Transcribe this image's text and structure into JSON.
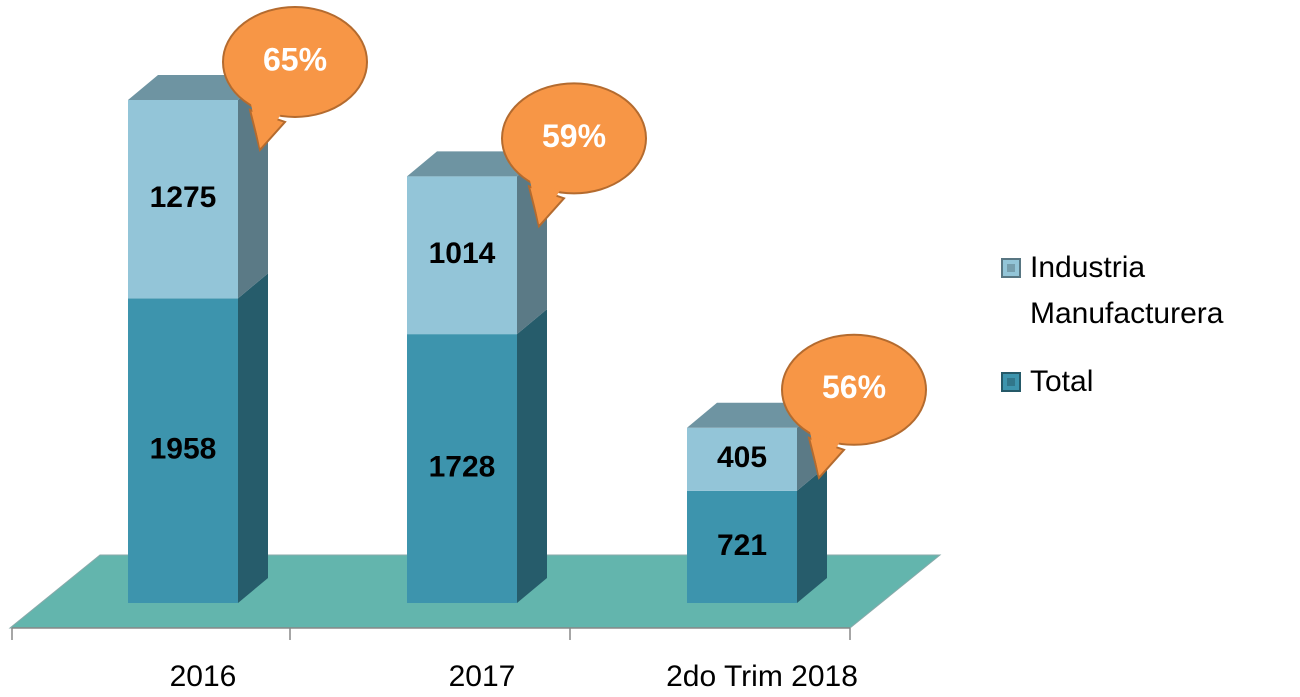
{
  "chart_data": {
    "type": "bar3d_stacked",
    "categories": [
      "2016",
      "2017",
      "2do Trim 2018"
    ],
    "series": [
      {
        "name": "Total",
        "color": "#3d94ad",
        "values": [
          1958,
          1728,
          721
        ]
      },
      {
        "name": "Industria Manufacturera",
        "color": "#93c5d8",
        "values": [
          1275,
          1014,
          405
        ]
      }
    ],
    "annotations": [
      "65%",
      "59%",
      "56%"
    ],
    "annotation_color": "#f79646",
    "floor_color": "#63b5ad"
  }
}
